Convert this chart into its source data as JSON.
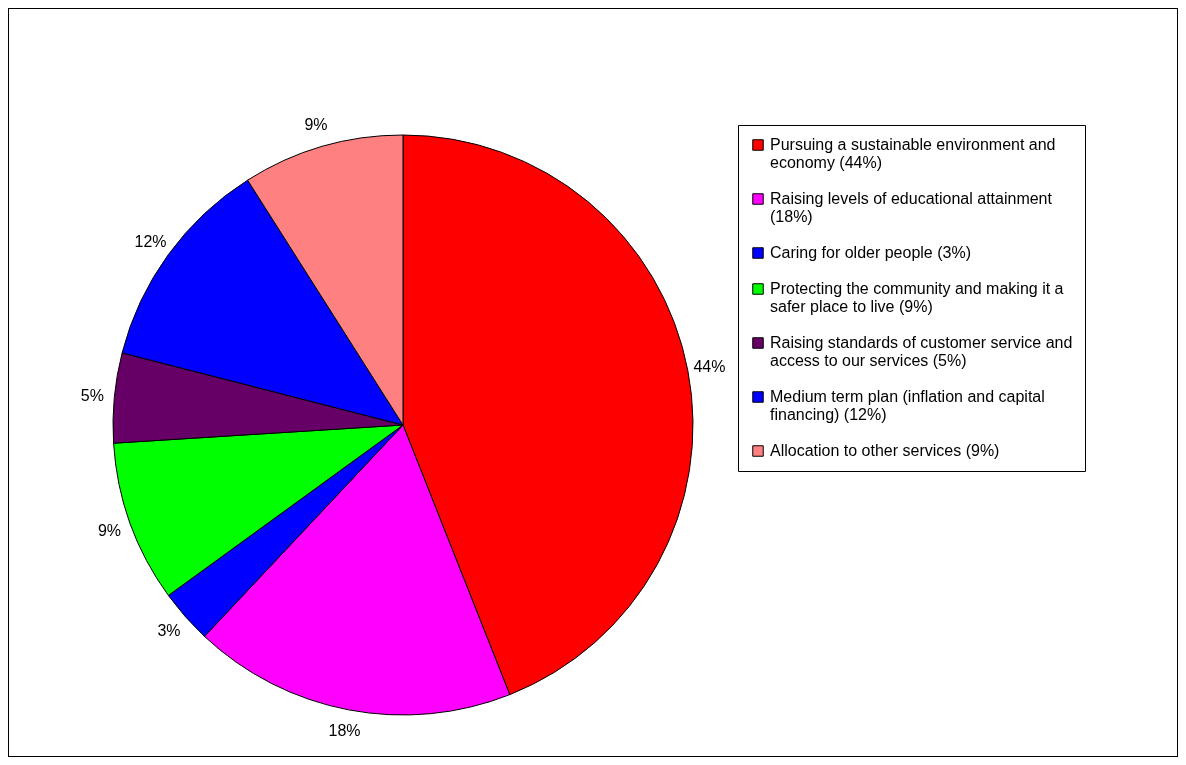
{
  "chart_data": {
    "type": "pie",
    "categories": [
      "Pursuing a sustainable environment and economy (44%)",
      "Raising levels of educational attainment (18%)",
      "Caring for older people (3%)",
      "Protecting the community and making it a safer place to live (9%)",
      "Raising standards of customer service and access to our services (5%)",
      "Medium term plan (inflation and capital financing) (12%)",
      "Allocation to other services (9%)"
    ],
    "values": [
      44,
      18,
      3,
      9,
      5,
      12,
      9
    ],
    "colors": [
      "#ff0000",
      "#ff00ff",
      "#0000ff",
      "#00ff00",
      "#660066",
      "#0000ff",
      "#ff8080"
    ],
    "value_labels": [
      "44%",
      "18%",
      "3%",
      "9%",
      "5%",
      "12%",
      "9%"
    ],
    "legend": "right"
  }
}
